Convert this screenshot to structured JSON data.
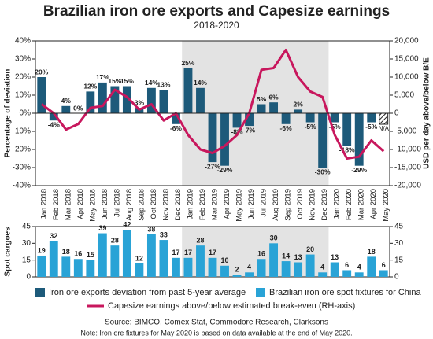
{
  "chart_data": [
    {
      "type": "combo",
      "title": "Brazilian iron ore exports and Capesize earnings",
      "subtitle": "2018-2020",
      "categories": [
        "Jan 2018",
        "Feb 2018",
        "Mar 2018",
        "Apr 2018",
        "May 2018",
        "Jun 2018",
        "Jul 2018",
        "Aug 2018",
        "Sep 2018",
        "Oct 2018",
        "Nov 2018",
        "Dec 2018",
        "Jan 2019",
        "Feb 2019",
        "Mar 2019",
        "Apr 2019",
        "May 2019",
        "Jun 2019",
        "Jul 2019",
        "Aug 2019",
        "Sep 2019",
        "Oct 2019",
        "Nov 2019",
        "Dec 2019",
        "Jan 2020",
        "Feb 2020",
        "Mar 2020",
        "Apr 2020",
        "May 2020"
      ],
      "ylabel": "Percentage of deviation",
      "y2label": "USD per day above/below B/E",
      "ylim": [
        -40,
        40
      ],
      "yticks": [
        {
          "value": -40,
          "label": "-40%"
        },
        {
          "value": -30,
          "label": "-30%"
        },
        {
          "value": -20,
          "label": "-20%"
        },
        {
          "value": -10,
          "label": "-10%"
        },
        {
          "value": 0,
          "label": "0%"
        },
        {
          "value": 10,
          "label": "10%"
        },
        {
          "value": 20,
          "label": "20%"
        },
        {
          "value": 30,
          "label": "30%"
        },
        {
          "value": 40,
          "label": "40%"
        }
      ],
      "y2lim": [
        -20000,
        20000
      ],
      "y2ticks": [
        {
          "value": -20000,
          "label": "-20,000"
        },
        {
          "value": -15000,
          "label": "-15,000"
        },
        {
          "value": -10000,
          "label": "-10,000"
        },
        {
          "value": -5000,
          "label": "-5,000"
        },
        0,
        {
          "value": 5000,
          "label": "5,000"
        },
        {
          "value": 10000,
          "label": "10,000"
        },
        {
          "value": 15000,
          "label": "15,000"
        },
        {
          "value": 20000,
          "label": "20,000"
        }
      ],
      "series": [
        {
          "name": "Iron ore exports deviation from past 5-year average",
          "type": "bar",
          "color": "#1d5a7a",
          "values": [
            20,
            -4,
            4,
            0,
            12,
            17,
            15,
            15,
            3,
            14,
            13,
            -6,
            25,
            14,
            -27,
            -29,
            -8,
            -7,
            5,
            6,
            -6,
            2,
            -5,
            -30,
            -5,
            -18,
            -29,
            -5,
            null
          ],
          "value_labels": [
            "20%",
            "-4%",
            "4%",
            "0%",
            "12%",
            "17%",
            "15%",
            "15%",
            "3%",
            "14%",
            "13%",
            "-6%",
            "25%",
            "14%",
            "-27%",
            "-29%",
            "-8%",
            "-7%",
            "5%",
            "6%",
            "-6%",
            "2%",
            "-5%",
            "-30%",
            "-5%",
            "-18%",
            "-29%",
            "-5%",
            "N/A"
          ]
        },
        {
          "name": "Capesize earnings above/below estimated break-even (RH-axis)",
          "type": "line",
          "axis": "y2",
          "color": "#c8175d",
          "values": [
            2500,
            0,
            -4500,
            -3000,
            1500,
            2000,
            6500,
            4500,
            1000,
            2500,
            -2000,
            0,
            -6000,
            -10000,
            -11000,
            -9000,
            -6000,
            0,
            12000,
            12500,
            17500,
            10000,
            6000,
            4500,
            -6000,
            -12500,
            -12000,
            -7500,
            -10500
          ]
        }
      ],
      "source": "Source: BIMCO, Comex Stat, Commodore Research, Clarksons",
      "note": "Note: Iron ore fixtures for May 2020 is based on data available at the end of May 2020."
    },
    {
      "type": "bar",
      "ylabel": "Spot cargoes",
      "ylim": [
        0,
        45
      ],
      "yticks": [
        0,
        15,
        30,
        45
      ],
      "series": [
        {
          "name": "Brazilian iron ore spot fixtures for China",
          "color": "#29a3d6",
          "values": [
            19,
            32,
            18,
            16,
            15,
            39,
            28,
            42,
            12,
            38,
            33,
            17,
            17,
            28,
            17,
            10,
            2,
            4,
            16,
            30,
            14,
            13,
            20,
            4,
            13,
            6,
            4,
            18,
            6
          ]
        }
      ]
    }
  ]
}
